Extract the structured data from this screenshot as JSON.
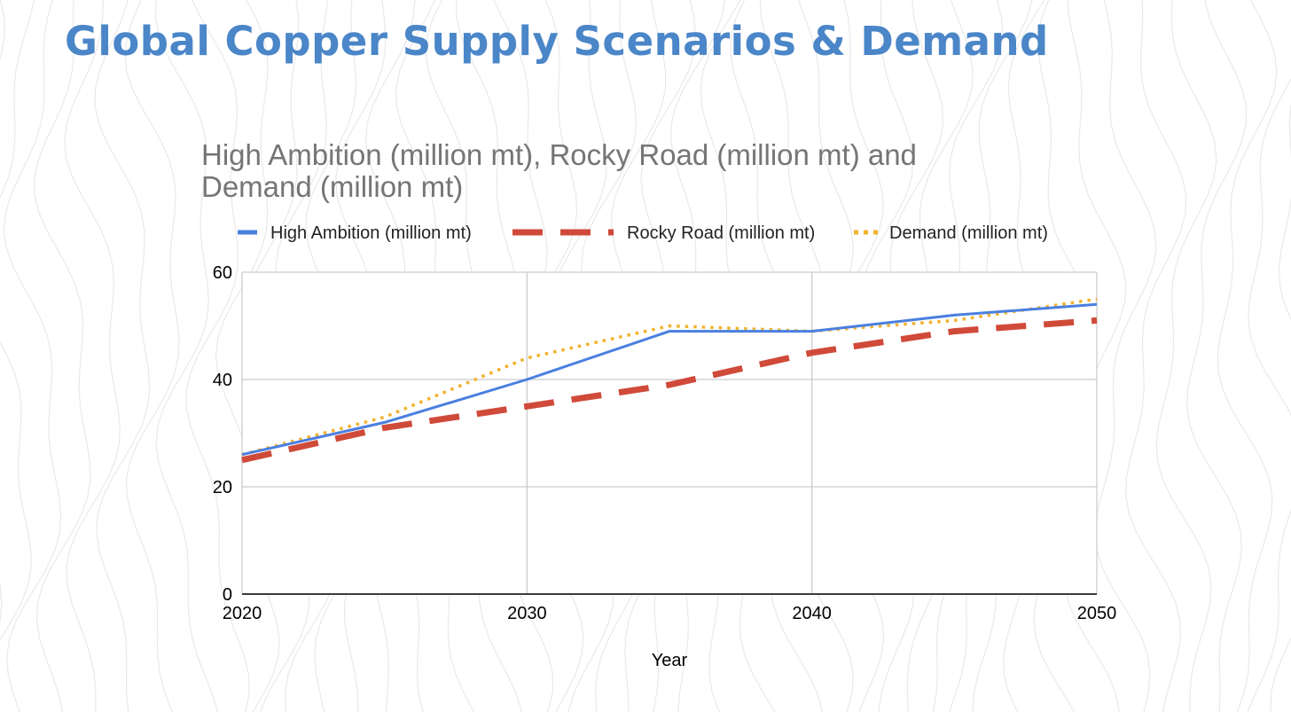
{
  "page": {
    "title": "Global Copper Supply Scenarios & Demand"
  },
  "colors": {
    "title": "#4a86c8",
    "high_ambition": "#4a7fe0",
    "rocky_road": "#d04a3a",
    "demand": "#f1b22e",
    "grid": "#cccccc",
    "axis": "#000000",
    "chart_title": "#757575",
    "background_contours": "#e9e9e9"
  },
  "chart_data": {
    "type": "line",
    "title_lines": [
      "High Ambition (million mt), Rocky Road (million mt) and",
      "Demand (million mt)"
    ],
    "xlabel": "Year",
    "ylabel": "",
    "xlim": [
      2020,
      2050
    ],
    "ylim": [
      0,
      60
    ],
    "xticks": [
      2020,
      2030,
      2040,
      2050
    ],
    "yticks": [
      0,
      20,
      40,
      60
    ],
    "grid": true,
    "legend_position": "top",
    "x": [
      2020,
      2025,
      2030,
      2035,
      2040,
      2045,
      2050
    ],
    "series": [
      {
        "name": "High Ambition (million mt)",
        "style": "solid",
        "color_key": "high_ambition",
        "values": [
          26,
          32,
          40,
          49,
          49,
          52,
          54
        ]
      },
      {
        "name": "Rocky Road (million mt)",
        "style": "dashed",
        "color_key": "rocky_road",
        "values": [
          25,
          31,
          35,
          39,
          45,
          49,
          51
        ]
      },
      {
        "name": "Demand (million mt)",
        "style": "dotted",
        "color_key": "demand",
        "values": [
          26,
          33,
          44,
          50,
          49,
          51,
          55
        ]
      }
    ]
  }
}
